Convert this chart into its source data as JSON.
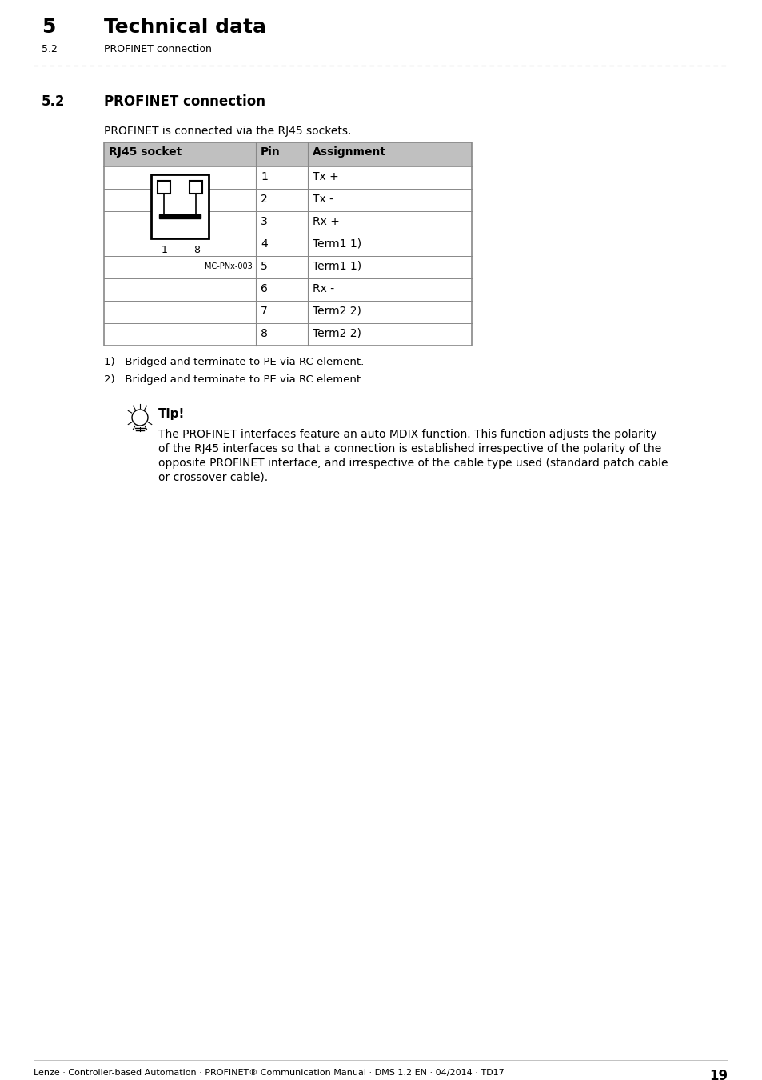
{
  "page_title_num": "5",
  "page_title_text": "Technical data",
  "page_subtitle_num": "5.2",
  "page_subtitle_text": "PROFINET connection",
  "section_num": "5.2",
  "section_title": "PROFINET connection",
  "intro_text": "PROFINET is connected via the RJ45 sockets.",
  "table_headers": [
    "RJ45 socket",
    "Pin",
    "Assignment"
  ],
  "table_pins": [
    [
      "1",
      "Tx +"
    ],
    [
      "2",
      "Tx -"
    ],
    [
      "3",
      "Rx +"
    ],
    [
      "4",
      "Term1 1)"
    ],
    [
      "5",
      "Term1 1)"
    ],
    [
      "6",
      "Rx -"
    ],
    [
      "7",
      "Term2 2)"
    ],
    [
      "8",
      "Term2 2)"
    ]
  ],
  "footnote1": "1)   Bridged and terminate to PE via RC element.",
  "footnote2": "2)   Bridged and terminate to PE via RC element.",
  "tip_title": "Tip!",
  "tip_text": "The PROFINET interfaces feature an auto MDIX function. This function adjusts the polarity\nof the RJ45 interfaces so that a connection is established irrespective of the polarity of the\nopposite PROFINET interface, and irrespective of the cable type used (standard patch cable\nor crossover cable).",
  "footer_text": "Lenze · Controller-based Automation · PROFINET® Communication Manual · DMS 1.2 EN · 04/2014 · TD17",
  "footer_page": "19",
  "header_bg": "#c0c0c0",
  "table_border": "#888888",
  "body_text_color": "#000000",
  "dash_color": "#888888",
  "image_label": "MC-PNx-003"
}
